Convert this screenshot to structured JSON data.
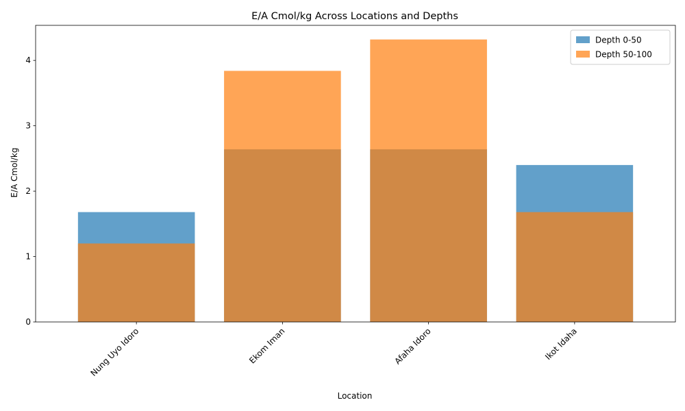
{
  "chart_data": {
    "type": "bar",
    "title": "E/A Cmol/kg Across Locations and Depths",
    "xlabel": "Location",
    "ylabel": "E/A Cmol/kg",
    "categories": [
      "Nung Uyo Idoro",
      "Ekom Iman",
      "Afaha Idoro",
      "Ikot Idaha"
    ],
    "series": [
      {
        "name": "Depth 0-50",
        "values": [
          1.68,
          2.64,
          2.64,
          2.4
        ],
        "color": "#1f77b4"
      },
      {
        "name": "Depth 50-100",
        "values": [
          1.2,
          3.84,
          4.32,
          1.68
        ],
        "color": "#ff7f0e"
      }
    ],
    "ylim": [
      0,
      4.536
    ],
    "yticks": [
      0,
      1,
      2,
      3,
      4
    ],
    "legend": "top-right",
    "grid": false,
    "bar_alpha": 0.7
  }
}
